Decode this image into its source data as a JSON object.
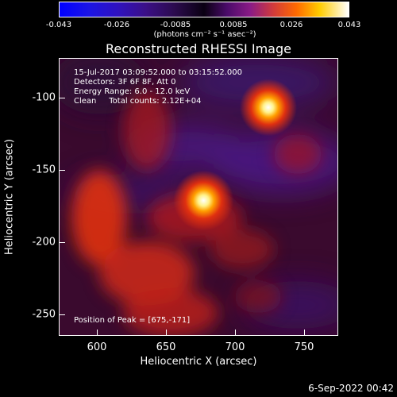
{
  "colorbar": {
    "ticks": [
      "-0.043",
      "-0.026",
      "-0.0085",
      "0.0085",
      "0.026",
      "0.043"
    ],
    "unit": "(photons cm⁻² s⁻¹ asec⁻²)"
  },
  "title": "Reconstructed RHESSI Image",
  "info": {
    "line1": "15-Jul-2017 03:09:52.000 to 03:15:52.000",
    "line2": "Detectors: 3F 6F 8F, Att 0",
    "line3": "Energy Range: 6.0 - 12.0 keV",
    "line4": "Clean     Total counts: 2.12E+04"
  },
  "peak_text": "Position of Peak = [675,-171]",
  "xaxis": {
    "title": "Heliocentric X (arcsec)",
    "ticks": [
      "600",
      "650",
      "700",
      "750"
    ]
  },
  "yaxis": {
    "title": "Heliocentric Y (arcsec)",
    "ticks": [
      "-100",
      "-150",
      "-200",
      "-250"
    ]
  },
  "timestamp": "6-Sep-2022 00:42",
  "image_features": {
    "sources": [
      {
        "x": 675,
        "y": -171,
        "strength": 1.0
      },
      {
        "x": 720,
        "y": -106,
        "strength": 0.95
      }
    ],
    "colormap": "purple-red-yellow-white"
  }
}
